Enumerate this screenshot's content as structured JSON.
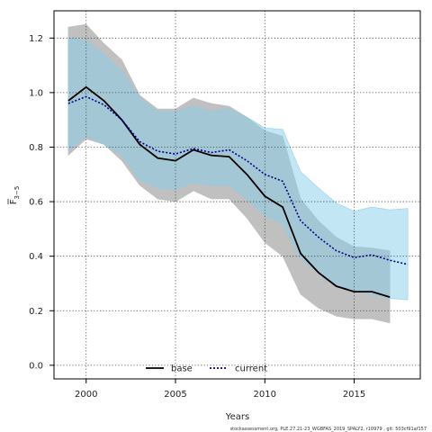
{
  "chart_data": {
    "type": "line",
    "xlabel": "Years",
    "ylabel_main": "F",
    "ylabel_sub": "3−5",
    "xlim": [
      1998.2,
      2018.7
    ],
    "ylim": [
      -0.05,
      1.3
    ],
    "xticks": [
      2000,
      2005,
      2010,
      2015
    ],
    "yticks": [
      0.0,
      0.2,
      0.4,
      0.6,
      0.8,
      1.0,
      1.2
    ],
    "ytick_labels": [
      "0.0",
      "0.2",
      "0.4",
      "0.6",
      "0.8",
      "1.0",
      "1.2"
    ],
    "grid": true,
    "legend_position": "bottom",
    "footnote": "stockassessment.org, PLE.27.21-23_WGBFAS_2019_SPALY2, r10979 , git: 503cf91af157",
    "series": [
      {
        "name": "base",
        "color": "#000000",
        "linestyle": "solid",
        "band_color": "#bdbdbd",
        "x": [
          1999,
          2000,
          2001,
          2002,
          2003,
          2004,
          2005,
          2006,
          2007,
          2008,
          2009,
          2010,
          2011,
          2012,
          2013,
          2014,
          2015,
          2016,
          2017
        ],
        "y": [
          0.97,
          1.02,
          0.97,
          0.9,
          0.81,
          0.76,
          0.75,
          0.79,
          0.77,
          0.765,
          0.7,
          0.62,
          0.58,
          0.41,
          0.34,
          0.29,
          0.27,
          0.27,
          0.25
        ],
        "upper": [
          1.24,
          1.25,
          1.18,
          1.12,
          0.99,
          0.94,
          0.94,
          0.98,
          0.96,
          0.95,
          0.91,
          0.86,
          0.84,
          0.61,
          0.53,
          0.47,
          0.435,
          0.43,
          0.42
        ],
        "lower": [
          0.77,
          0.83,
          0.81,
          0.75,
          0.66,
          0.61,
          0.6,
          0.64,
          0.61,
          0.61,
          0.54,
          0.45,
          0.4,
          0.26,
          0.21,
          0.18,
          0.17,
          0.17,
          0.155
        ]
      },
      {
        "name": "current",
        "color": "#00008b",
        "linestyle": "dotted",
        "band_color": "#87ceeb",
        "x": [
          1999,
          2000,
          2001,
          2002,
          2003,
          2004,
          2005,
          2006,
          2007,
          2008,
          2009,
          2010,
          2011,
          2012,
          2013,
          2014,
          2015,
          2016,
          2017,
          2018
        ],
        "y": [
          0.96,
          0.985,
          0.955,
          0.9,
          0.82,
          0.785,
          0.775,
          0.795,
          0.78,
          0.79,
          0.75,
          0.7,
          0.675,
          0.53,
          0.47,
          0.42,
          0.395,
          0.405,
          0.385,
          0.37
        ],
        "upper": [
          1.2,
          1.19,
          1.14,
          1.08,
          0.98,
          0.93,
          0.93,
          0.95,
          0.93,
          0.94,
          0.91,
          0.87,
          0.865,
          0.71,
          0.65,
          0.595,
          0.565,
          0.58,
          0.57,
          0.575
        ],
        "lower": [
          0.79,
          0.84,
          0.81,
          0.77,
          0.68,
          0.65,
          0.645,
          0.67,
          0.66,
          0.66,
          0.61,
          0.55,
          0.52,
          0.39,
          0.34,
          0.295,
          0.27,
          0.26,
          0.245,
          0.24
        ]
      }
    ]
  }
}
